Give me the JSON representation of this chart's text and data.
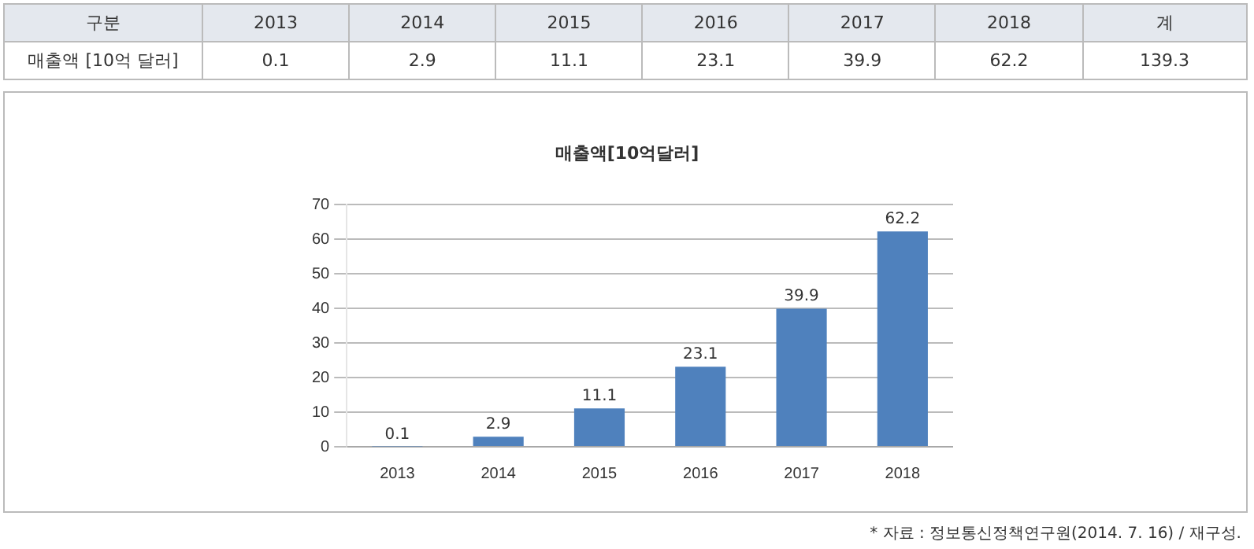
{
  "chart_data": {
    "type": "bar",
    "title": "매출액[10억달러]",
    "categories": [
      "2013",
      "2014",
      "2015",
      "2016",
      "2017",
      "2018"
    ],
    "values": [
      0.1,
      2.9,
      11.1,
      23.1,
      39.9,
      62.2
    ],
    "color": "#4f81bd",
    "ylim": [
      0,
      70
    ],
    "yticks": [
      0,
      10,
      20,
      30,
      40,
      50,
      60,
      70
    ],
    "grid": "y",
    "legend": false,
    "data_labels": true,
    "annotations": [
      "구분",
      "매출액 [10억 달러]",
      "계",
      "139.3",
      "* 자료 : 정보통신정책연구원(2014. 7. 16) / 재구성.",
      "0.1",
      "2.9",
      "11.1",
      "23.1",
      "39.9",
      "62.2"
    ]
  }
}
